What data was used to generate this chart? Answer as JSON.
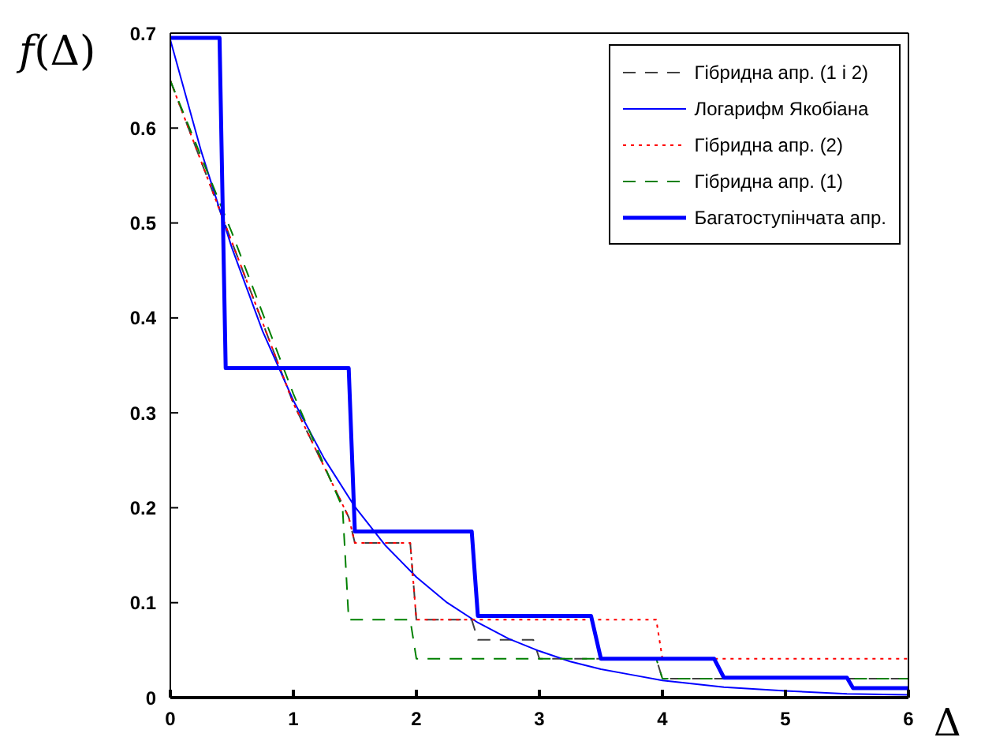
{
  "chart_data": {
    "type": "line",
    "xlabel": "Δ",
    "ylabel": "f(Δ)",
    "xlim": [
      0,
      6
    ],
    "xticks": [
      0,
      1,
      2,
      3,
      4,
      5,
      6
    ],
    "ylim": [
      0,
      0.7
    ],
    "yticks": [
      0,
      0.1,
      0.2,
      0.3,
      0.4,
      0.5,
      0.6,
      0.7
    ],
    "grid": false,
    "legend": "top right",
    "marker": "none",
    "series": [
      {
        "name": "Гібридна апр. (1 і 2)",
        "color": "#404040",
        "line_style": "dashed",
        "x": [
          0,
          0.5,
          1,
          1.45,
          1.5,
          1.95,
          2,
          2.45,
          2.5,
          2.95,
          3,
          3.95,
          4,
          6
        ],
        "values": [
          0.65,
          0.48,
          0.31,
          0.19,
          0.163,
          0.163,
          0.082,
          0.082,
          0.061,
          0.061,
          0.041,
          0.041,
          0.02,
          0.02
        ]
      },
      {
        "name": "Логарифм Якобіана",
        "color": "#0000ff",
        "line_style": "solid",
        "x": [
          0,
          0.25,
          0.5,
          0.75,
          1,
          1.25,
          1.5,
          1.75,
          2,
          2.25,
          2.5,
          2.75,
          3,
          3.25,
          3.5,
          3.75,
          4,
          4.5,
          5,
          5.5,
          6
        ],
        "values": [
          0.693,
          0.576,
          0.474,
          0.386,
          0.313,
          0.252,
          0.201,
          0.16,
          0.127,
          0.1,
          0.079,
          0.062,
          0.049,
          0.038,
          0.03,
          0.024,
          0.018,
          0.011,
          0.007,
          0.004,
          0.003
        ]
      },
      {
        "name": "Гібридна апр. (2)",
        "color": "#ff0000",
        "line_style": "dotted",
        "x": [
          0,
          0.5,
          1,
          1.45,
          1.5,
          1.95,
          2,
          3.95,
          4,
          6
        ],
        "values": [
          0.65,
          0.48,
          0.31,
          0.19,
          0.163,
          0.163,
          0.082,
          0.082,
          0.041,
          0.041
        ]
      },
      {
        "name": "Гібридна апр. (1)",
        "color": "#008000",
        "line_style": "dashed",
        "x": [
          0,
          0.5,
          1,
          1.4,
          1.45,
          1.95,
          2,
          3.95,
          4,
          6
        ],
        "values": [
          0.65,
          0.49,
          0.32,
          0.2,
          0.082,
          0.082,
          0.041,
          0.041,
          0.02,
          0.02
        ]
      },
      {
        "name": "Багатоступінчата апр.",
        "color": "#0000ff",
        "line_style": "solid",
        "x": [
          0,
          0.4,
          0.45,
          1.45,
          1.5,
          2.45,
          2.5,
          3.42,
          3.5,
          4.42,
          4.5,
          5.5,
          5.55,
          6
        ],
        "values": [
          0.695,
          0.695,
          0.347,
          0.347,
          0.175,
          0.175,
          0.086,
          0.086,
          0.041,
          0.041,
          0.021,
          0.021,
          0.01,
          0.01
        ]
      }
    ]
  }
}
